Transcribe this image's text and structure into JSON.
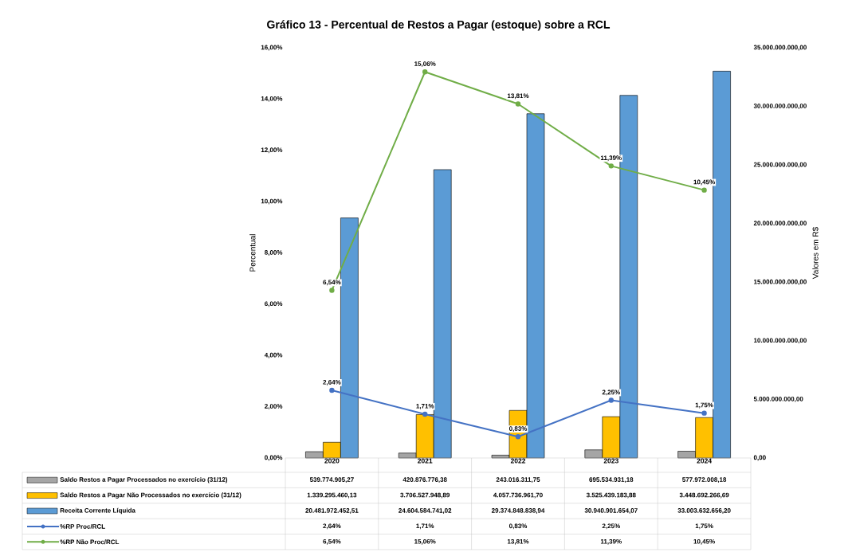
{
  "chart_data": {
    "type": "bar",
    "title": "Gráfico 13 - Percentual de Restos a Pagar (estoque) sobre a RCL",
    "ylabel": "Percentual",
    "y2label": "Valores em R$",
    "categories": [
      "2020",
      "2021",
      "2022",
      "2023",
      "2024"
    ],
    "series": [
      {
        "name": "Saldo Restos a Pagar Processados no exercício (31/12)",
        "axis": "y2",
        "color": "#a5a5a5",
        "values": [
          539774905.27,
          420876776.38,
          243016311.75,
          695534931.18,
          577972008.18
        ],
        "value_labels": [
          "539.774.905,27",
          "420.876.776,38",
          "243.016.311,75",
          "695.534.931,18",
          "577.972.008,18"
        ]
      },
      {
        "name": "Saldo Restos a Pagar Não Processados no exercício (31/12)",
        "axis": "y2",
        "color": "#ffc000",
        "values": [
          1339295460.13,
          3706527948.89,
          4057736961.7,
          3525439183.88,
          3448692266.69
        ],
        "value_labels": [
          "1.339.295.460,13",
          "3.706.527.948,89",
          "4.057.736.961,70",
          "3.525.439.183,88",
          "3.448.692.266,69"
        ]
      },
      {
        "name": "Receita Corrente Líquida",
        "axis": "y2",
        "color": "#5b9bd5",
        "values": [
          20481972452.51,
          24604584741.02,
          29374848838.94,
          30940901654.07,
          33003632656.2
        ],
        "value_labels": [
          "20.481.972.452,51",
          "24.604.584.741,02",
          "29.374.848.838,94",
          "30.940.901.654,07",
          "33.003.632.656,20"
        ]
      },
      {
        "name": "%RP Proc/RCL",
        "type": "line",
        "axis": "y",
        "color": "#4472c4",
        "values": [
          2.64,
          1.71,
          0.83,
          2.25,
          1.75
        ],
        "value_labels": [
          "2,64%",
          "1,71%",
          "0,83%",
          "2,25%",
          "1,75%"
        ]
      },
      {
        "name": "%RP Não Proc/RCL",
        "type": "line",
        "axis": "y",
        "color": "#70ad47",
        "values": [
          6.54,
          15.06,
          13.81,
          11.39,
          10.45
        ],
        "value_labels": [
          "6,54%",
          "15,06%",
          "13,81%",
          "11,39%",
          "10,45%"
        ]
      }
    ],
    "ylim": [
      0,
      16
    ],
    "yticks": [
      {
        "value": 0,
        "label": "0,00%"
      },
      {
        "value": 2,
        "label": "2,00%"
      },
      {
        "value": 4,
        "label": "4,00%"
      },
      {
        "value": 6,
        "label": "6,00%"
      },
      {
        "value": 8,
        "label": "8,00%"
      },
      {
        "value": 10,
        "label": "10,00%"
      },
      {
        "value": 12,
        "label": "12,00%"
      },
      {
        "value": 14,
        "label": "14,00%"
      },
      {
        "value": 16,
        "label": "16,00%"
      }
    ],
    "y2lim": [
      0,
      35000000000
    ],
    "y2ticks": [
      {
        "value": 0,
        "label": "0,00"
      },
      {
        "value": 5000000000,
        "label": "5.000.000.000,00"
      },
      {
        "value": 10000000000,
        "label": "10.000.000.000,00"
      },
      {
        "value": 15000000000,
        "label": "15.000.000.000,00"
      },
      {
        "value": 20000000000,
        "label": "20.000.000.000,00"
      },
      {
        "value": 25000000000,
        "label": "25.000.000.000,00"
      },
      {
        "value": 30000000000,
        "label": "30.000.000.000,00"
      },
      {
        "value": 35000000000,
        "label": "35.000.000.000,00"
      }
    ],
    "legend": "bottom",
    "marker": "circle",
    "line_style": "solid"
  }
}
